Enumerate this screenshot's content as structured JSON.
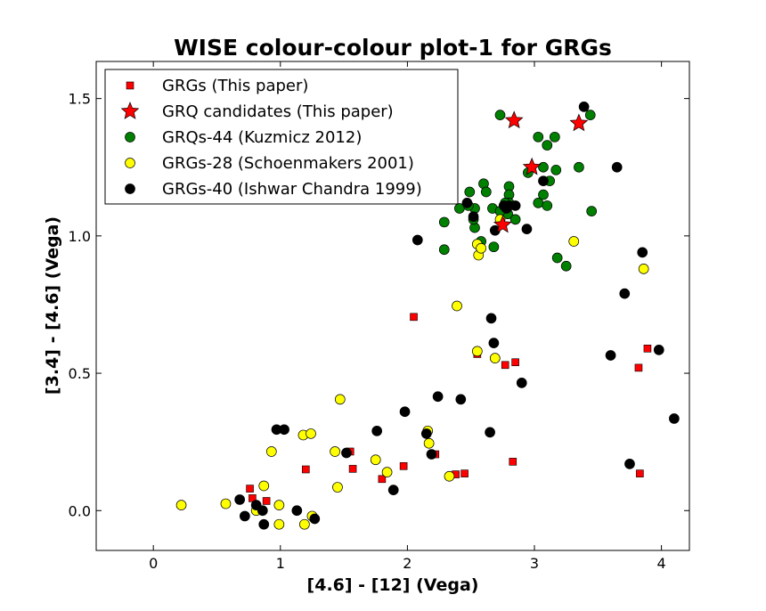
{
  "chart_data": {
    "type": "scatter",
    "title": "WISE colour-colour plot-1 for GRGs",
    "xlabel": "[4.6] - [12] (Vega)",
    "ylabel": "[3.4] - [4.6] (Vega)",
    "xlim": [
      -0.45,
      4.22
    ],
    "ylim": [
      -0.145,
      1.635
    ],
    "x_ticks": [
      0,
      1,
      2,
      3,
      4
    ],
    "x_tick_labels": [
      "0",
      "1",
      "2",
      "3",
      "4"
    ],
    "y_ticks": [
      0.0,
      0.5,
      1.0,
      1.5
    ],
    "y_tick_labels": [
      "0.0",
      "0.5",
      "1.0",
      "1.5"
    ],
    "grid": false,
    "legend_position": "top-left",
    "series": [
      {
        "name": "GRGs (This paper)",
        "marker": "square",
        "color": "#ff0000",
        "points": [
          [
            0.76,
            0.08
          ],
          [
            0.78,
            0.045
          ],
          [
            0.89,
            0.035
          ],
          [
            1.2,
            0.15
          ],
          [
            1.55,
            0.215
          ],
          [
            1.57,
            0.152
          ],
          [
            1.8,
            0.115
          ],
          [
            1.97,
            0.162
          ],
          [
            2.05,
            0.705
          ],
          [
            2.22,
            0.205
          ],
          [
            2.38,
            0.132
          ],
          [
            2.45,
            0.135
          ],
          [
            2.55,
            0.57
          ],
          [
            2.77,
            0.53
          ],
          [
            2.83,
            0.178
          ],
          [
            2.85,
            0.54
          ],
          [
            3.82,
            0.52
          ],
          [
            3.83,
            0.135
          ],
          [
            3.89,
            0.59
          ]
        ]
      },
      {
        "name": "GRQ candidates (This paper)",
        "marker": "star",
        "color": "#ff0000",
        "points": [
          [
            2.84,
            1.42
          ],
          [
            3.35,
            1.41
          ],
          [
            2.98,
            1.25
          ],
          [
            2.75,
            1.04
          ]
        ]
      },
      {
        "name": "GRQs-44 (Kuzmicz 2012)",
        "marker": "circle",
        "color": "#008000",
        "points": [
          [
            2.73,
            1.44
          ],
          [
            3.03,
            1.36
          ],
          [
            3.16,
            1.36
          ],
          [
            3.44,
            1.44
          ],
          [
            3.1,
            1.33
          ],
          [
            3.07,
            1.25
          ],
          [
            2.95,
            1.23
          ],
          [
            3.17,
            1.24
          ],
          [
            3.35,
            1.25
          ],
          [
            2.49,
            1.16
          ],
          [
            2.53,
            1.1
          ],
          [
            2.6,
            1.19
          ],
          [
            2.62,
            1.16
          ],
          [
            2.8,
            1.18
          ],
          [
            2.8,
            1.15
          ],
          [
            2.8,
            1.12
          ],
          [
            3.07,
            1.15
          ],
          [
            3.12,
            1.2
          ],
          [
            3.03,
            1.12
          ],
          [
            3.1,
            1.11
          ],
          [
            2.29,
            1.05
          ],
          [
            2.41,
            1.1
          ],
          [
            2.48,
            1.11
          ],
          [
            2.53,
            1.03
          ],
          [
            2.67,
            1.1
          ],
          [
            2.77,
            1.12
          ],
          [
            2.79,
            1.08
          ],
          [
            2.85,
            1.06
          ],
          [
            2.58,
            0.98
          ],
          [
            2.68,
            0.96
          ],
          [
            2.29,
            0.95
          ],
          [
            3.45,
            1.09
          ],
          [
            3.18,
            0.92
          ],
          [
            3.25,
            0.89
          ],
          [
            2.73,
            1.09
          ],
          [
            2.52,
            1.06
          ]
        ]
      },
      {
        "name": "GRGs-28 (Schoenmakers 2001)",
        "marker": "circle",
        "color": "#ffff00",
        "points": [
          [
            0.22,
            0.02
          ],
          [
            0.57,
            0.025
          ],
          [
            0.81,
            0.0
          ],
          [
            0.87,
            0.09
          ],
          [
            0.93,
            0.215
          ],
          [
            0.99,
            0.02
          ],
          [
            0.99,
            -0.05
          ],
          [
            1.18,
            0.275
          ],
          [
            1.19,
            -0.05
          ],
          [
            1.24,
            0.28
          ],
          [
            1.25,
            -0.02
          ],
          [
            1.43,
            0.215
          ],
          [
            1.45,
            0.085
          ],
          [
            1.47,
            0.405
          ],
          [
            1.75,
            0.185
          ],
          [
            1.84,
            0.14
          ],
          [
            2.16,
            0.29
          ],
          [
            2.17,
            0.245
          ],
          [
            2.33,
            0.125
          ],
          [
            2.39,
            0.745
          ],
          [
            2.55,
            0.58
          ],
          [
            2.69,
            0.555
          ],
          [
            2.55,
            0.97
          ],
          [
            2.56,
            0.93
          ],
          [
            2.58,
            0.955
          ],
          [
            2.73,
            1.06
          ],
          [
            3.31,
            0.98
          ],
          [
            3.86,
            0.88
          ]
        ]
      },
      {
        "name": "GRGs-40 (Ishwar Chandra 1999)",
        "marker": "circle",
        "color": "#000000",
        "points": [
          [
            0.68,
            0.04
          ],
          [
            0.72,
            -0.02
          ],
          [
            0.81,
            0.02
          ],
          [
            0.86,
            0.0
          ],
          [
            0.87,
            -0.05
          ],
          [
            0.97,
            0.295
          ],
          [
            1.03,
            0.295
          ],
          [
            1.13,
            0.0
          ],
          [
            1.27,
            -0.03
          ],
          [
            1.52,
            0.21
          ],
          [
            1.76,
            0.29
          ],
          [
            1.89,
            0.075
          ],
          [
            1.98,
            0.36
          ],
          [
            2.08,
            0.985
          ],
          [
            2.15,
            0.28
          ],
          [
            2.19,
            0.205
          ],
          [
            2.24,
            0.415
          ],
          [
            2.42,
            0.405
          ],
          [
            2.47,
            1.12
          ],
          [
            2.52,
            1.07
          ],
          [
            2.65,
            0.285
          ],
          [
            2.66,
            0.7
          ],
          [
            2.68,
            0.61
          ],
          [
            2.69,
            1.02
          ],
          [
            2.76,
            1.11
          ],
          [
            2.78,
            1.1
          ],
          [
            2.8,
            1.11
          ],
          [
            2.85,
            1.11
          ],
          [
            2.9,
            0.465
          ],
          [
            2.94,
            1.025
          ],
          [
            3.07,
            1.2
          ],
          [
            3.39,
            1.47
          ],
          [
            3.6,
            0.565
          ],
          [
            3.65,
            1.25
          ],
          [
            3.71,
            0.79
          ],
          [
            3.75,
            0.17
          ],
          [
            3.85,
            0.94
          ],
          [
            3.98,
            0.585
          ],
          [
            4.1,
            0.335
          ]
        ]
      }
    ]
  }
}
